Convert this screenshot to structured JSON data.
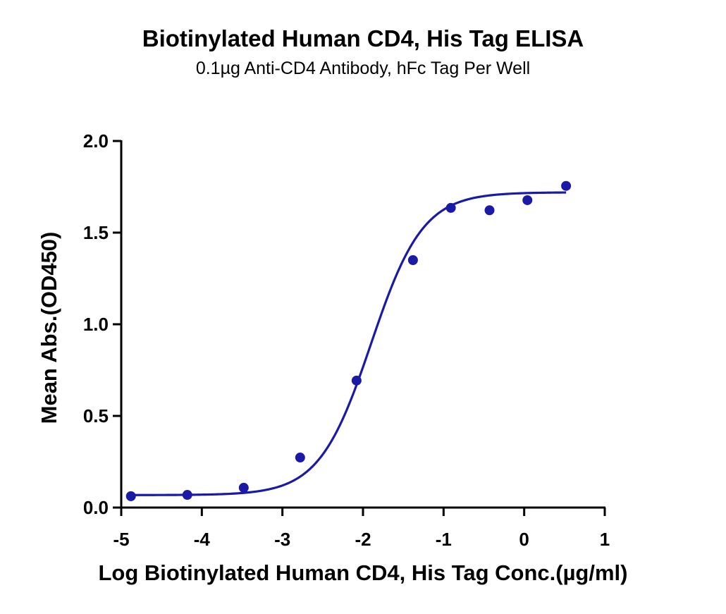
{
  "chart_data": {
    "type": "scatter",
    "title": "Biotinylated Human CD4, His Tag ELISA",
    "subtitle": "0.1µg Anti-CD4 Antibody, hFc Tag Per Well",
    "xlabel": "Log Biotinylated Human CD4, His Tag Conc.(µg/ml)",
    "ylabel": "Mean Abs.(OD450)",
    "xlim": [
      -5,
      1
    ],
    "ylim": [
      0,
      2.0
    ],
    "x_ticks": [
      -5,
      -4,
      -3,
      -2,
      -1,
      0,
      1
    ],
    "x_tick_labels": [
      "-5",
      "-4",
      "-3",
      "-2",
      "-1",
      "0",
      "1"
    ],
    "y_ticks": [
      0,
      0.5,
      1.0,
      1.5,
      2.0
    ],
    "y_tick_labels": [
      "0.0",
      "0.5",
      "1.0",
      "1.5",
      "2.0"
    ],
    "grid": false,
    "color": "#1a1aa6",
    "series": [
      {
        "points": [
          {
            "x": -4.88,
            "y": 0.062
          },
          {
            "x": -4.18,
            "y": 0.069
          },
          {
            "x": -3.48,
            "y": 0.108
          },
          {
            "x": -2.78,
            "y": 0.273
          },
          {
            "x": -2.08,
            "y": 0.693
          },
          {
            "x": -1.38,
            "y": 1.35
          },
          {
            "x": -0.91,
            "y": 1.635
          },
          {
            "x": -0.43,
            "y": 1.622
          },
          {
            "x": 0.04,
            "y": 1.677
          },
          {
            "x": 0.52,
            "y": 1.755
          }
        ],
        "fit": {
          "model": "4PL",
          "bottom": 0.068,
          "top": 1.72,
          "logEC50": -1.9,
          "hillslope": 1.35,
          "x_range": [
            -4.88,
            0.52
          ]
        }
      }
    ]
  }
}
